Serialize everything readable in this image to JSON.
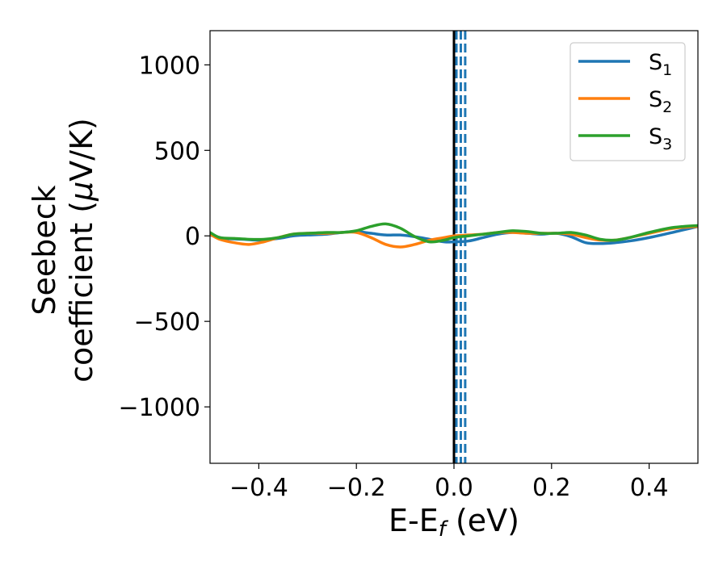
{
  "chart_data": {
    "type": "line",
    "xlabel": {
      "main": "E-E",
      "sub": "f",
      "suffix": " (eV)"
    },
    "ylabel": {
      "line1": "Seebeck",
      "line2": "coefficient  (",
      "mu": "μ",
      "line2_end": "V/K)"
    },
    "xlim": [
      -0.5,
      0.5
    ],
    "ylim": [
      -1330,
      1200
    ],
    "xticks": [
      -0.4,
      -0.2,
      0.0,
      0.2,
      0.4
    ],
    "xtick_labels": [
      "−0.4",
      "−0.2",
      "0.0",
      "0.2",
      "0.4"
    ],
    "yticks": [
      1000,
      500,
      0,
      -500,
      -1000
    ],
    "ytick_labels": [
      "1000",
      "500",
      "0",
      "−500",
      "−1000"
    ],
    "grid": false,
    "legend_position": "top-right",
    "vertical_lines": [
      {
        "x": 0.0,
        "color": "#000000",
        "style": "solid"
      },
      {
        "x": 0.005,
        "color": "#1f77b4",
        "style": "dashed"
      },
      {
        "x": 0.014,
        "color": "#1f77b4",
        "style": "dashed"
      },
      {
        "x": 0.023,
        "color": "#1f77b4",
        "style": "dashed"
      }
    ],
    "series": [
      {
        "name": "S1",
        "label_main": "S",
        "label_sub": "1",
        "color": "#1f77b4",
        "x": [
          -0.5,
          -0.47,
          -0.43,
          -0.4,
          -0.36,
          -0.33,
          -0.3,
          -0.26,
          -0.23,
          -0.2,
          -0.17,
          -0.14,
          -0.11,
          -0.08,
          -0.05,
          -0.02,
          0.0,
          0.03,
          0.06,
          0.09,
          0.12,
          0.15,
          0.18,
          0.21,
          0.24,
          0.27,
          0.3,
          0.33,
          0.36,
          0.4,
          0.44,
          0.47,
          0.5
        ],
        "y": [
          5,
          -15,
          -20,
          -25,
          -15,
          0,
          5,
          10,
          20,
          25,
          15,
          5,
          5,
          -5,
          -20,
          -35,
          -35,
          -30,
          -10,
          10,
          20,
          15,
          10,
          15,
          -5,
          -40,
          -45,
          -40,
          -30,
          -10,
          15,
          35,
          55
        ]
      },
      {
        "name": "S2",
        "label_main": "S",
        "label_sub": "2",
        "color": "#ff7f0e",
        "x": [
          -0.5,
          -0.48,
          -0.45,
          -0.42,
          -0.39,
          -0.36,
          -0.33,
          -0.3,
          -0.26,
          -0.23,
          -0.2,
          -0.17,
          -0.14,
          -0.11,
          -0.08,
          -0.05,
          -0.02,
          0.0,
          0.03,
          0.06,
          0.09,
          0.12,
          0.15,
          0.18,
          0.21,
          0.24,
          0.27,
          0.3,
          0.33,
          0.36,
          0.4,
          0.44,
          0.47,
          0.5
        ],
        "y": [
          10,
          -20,
          -40,
          -50,
          -35,
          -10,
          10,
          15,
          15,
          20,
          20,
          -10,
          -50,
          -65,
          -50,
          -25,
          -10,
          0,
          5,
          10,
          20,
          20,
          15,
          15,
          15,
          10,
          -10,
          -25,
          -25,
          -10,
          15,
          40,
          50,
          55
        ]
      },
      {
        "name": "S3",
        "label_main": "S",
        "label_sub": "3",
        "color": "#2ca02c",
        "x": [
          -0.5,
          -0.48,
          -0.45,
          -0.42,
          -0.39,
          -0.36,
          -0.33,
          -0.3,
          -0.26,
          -0.23,
          -0.2,
          -0.17,
          -0.14,
          -0.11,
          -0.08,
          -0.05,
          -0.02,
          0.0,
          0.03,
          0.06,
          0.09,
          0.12,
          0.15,
          0.18,
          0.21,
          0.24,
          0.27,
          0.3,
          0.33,
          0.36,
          0.4,
          0.44,
          0.47,
          0.5
        ],
        "y": [
          20,
          -10,
          -15,
          -20,
          -20,
          -10,
          10,
          15,
          20,
          20,
          30,
          55,
          70,
          45,
          -5,
          -35,
          -25,
          -10,
          0,
          10,
          20,
          30,
          25,
          15,
          15,
          20,
          5,
          -20,
          -25,
          -10,
          20,
          45,
          55,
          60
        ]
      }
    ]
  }
}
